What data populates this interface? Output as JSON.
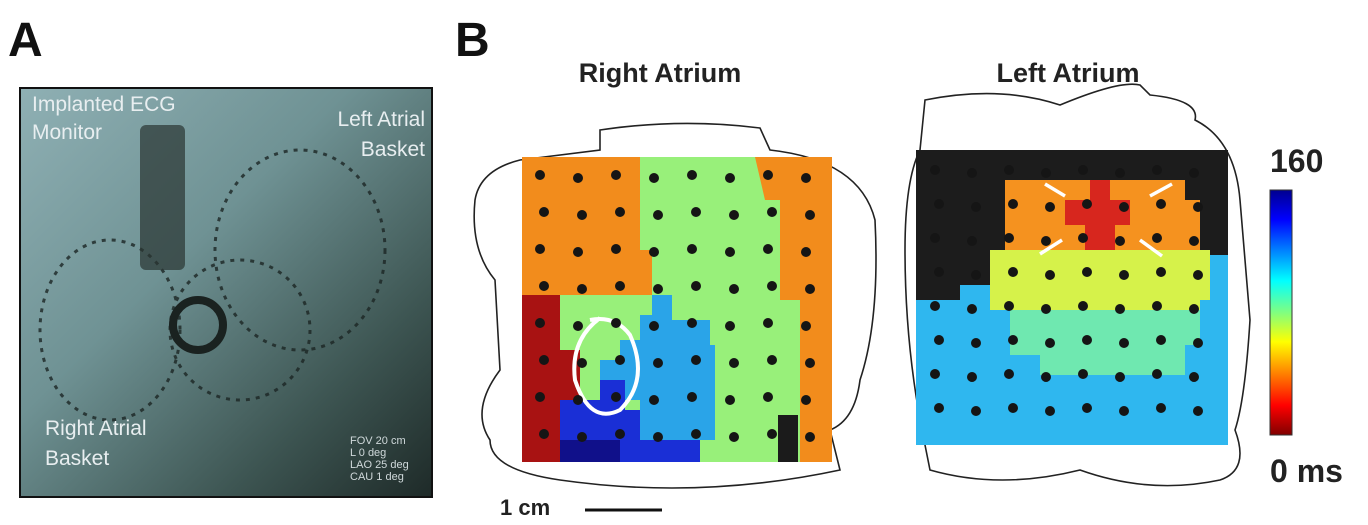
{
  "panel_a": {
    "label": "A",
    "ecg_monitor": [
      "Implanted ECG",
      "Monitor"
    ],
    "left_basket": [
      "Left Atrial",
      "Basket"
    ],
    "right_basket": [
      "Right Atrial",
      "Basket"
    ],
    "fluoro_info": [
      "FOV  20 cm",
      "L  0 deg",
      "LAO  25 deg",
      "CAU  1 deg"
    ]
  },
  "panel_b": {
    "label": "B",
    "maps": [
      {
        "title": "Right Atrium"
      },
      {
        "title": "Left Atrium"
      }
    ],
    "colorbar": {
      "max": "160",
      "min": "0 ms"
    },
    "scale_bar": "1 cm"
  }
}
